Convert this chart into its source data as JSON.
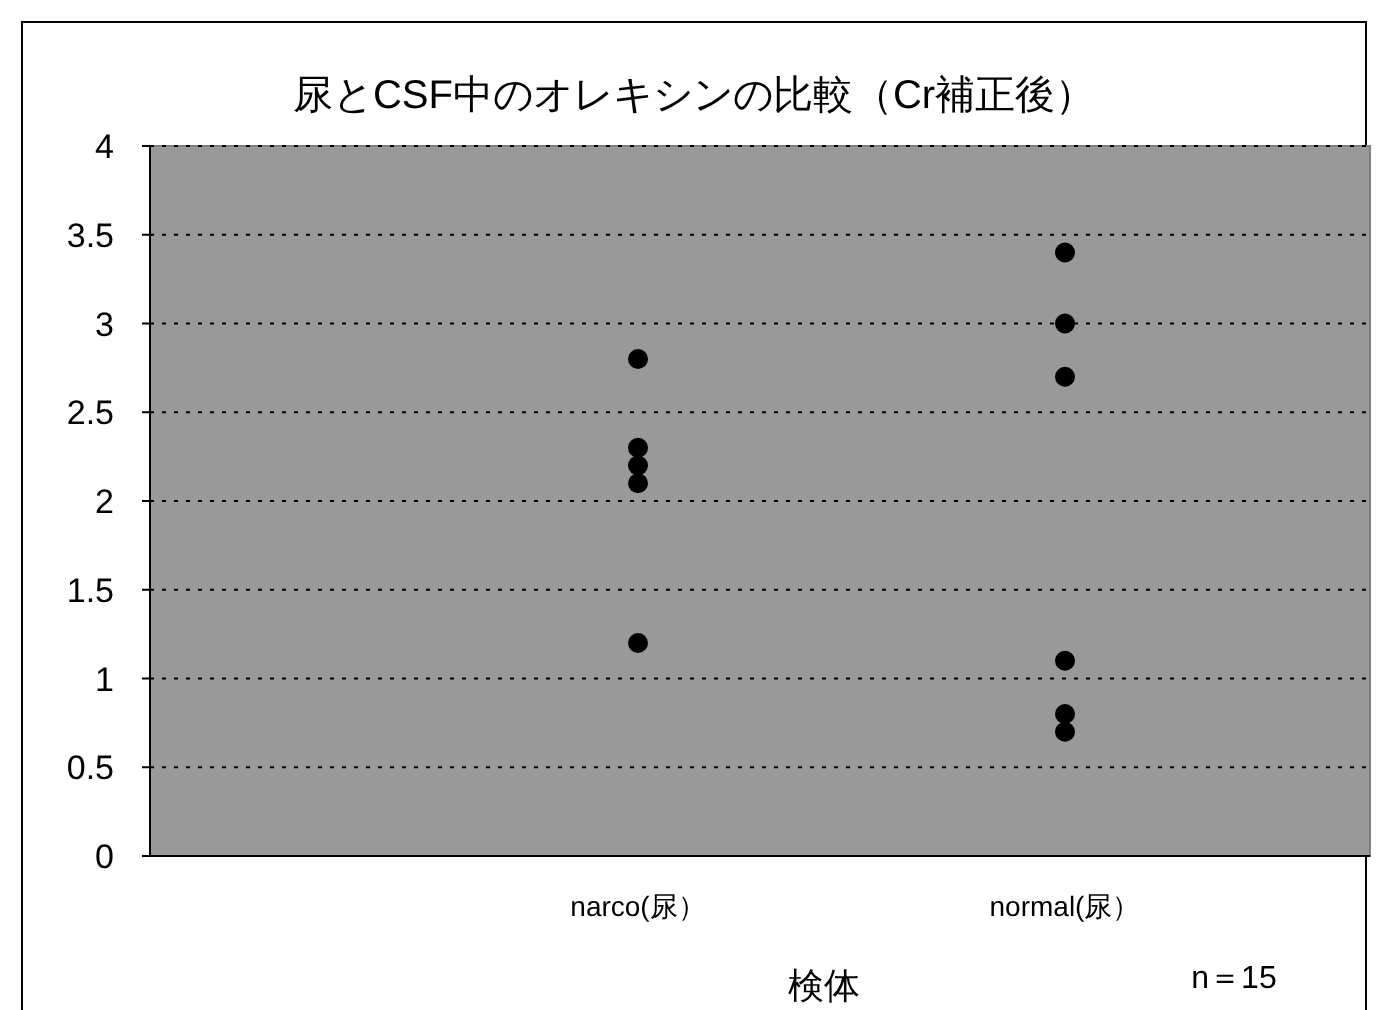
{
  "chart_data": {
    "type": "scatter",
    "title": "尿とCSF中のオレキシンの比較（Cr補正後）",
    "xlabel": "検体",
    "categories": [
      "narco(尿）",
      "normal(尿）"
    ],
    "series": [
      {
        "color": "#000000",
        "x": [
          "narco(尿）",
          "narco(尿）",
          "narco(尿）",
          "narco(尿）",
          "narco(尿）",
          "normal(尿）",
          "normal(尿）",
          "normal(尿）",
          "normal(尿）",
          "normal(尿）",
          "normal(尿）"
        ],
        "values": [
          2.8,
          2.3,
          2.2,
          2.1,
          1.2,
          3.4,
          3.0,
          2.7,
          1.1,
          0.8,
          0.7
        ]
      }
    ],
    "ylim": [
      0,
      4
    ],
    "yticks": [
      0,
      0.5,
      1,
      1.5,
      2,
      2.5,
      3,
      3.5,
      4
    ],
    "grid": "y",
    "marker": "circle",
    "annotations": [
      "n＝15"
    ]
  }
}
